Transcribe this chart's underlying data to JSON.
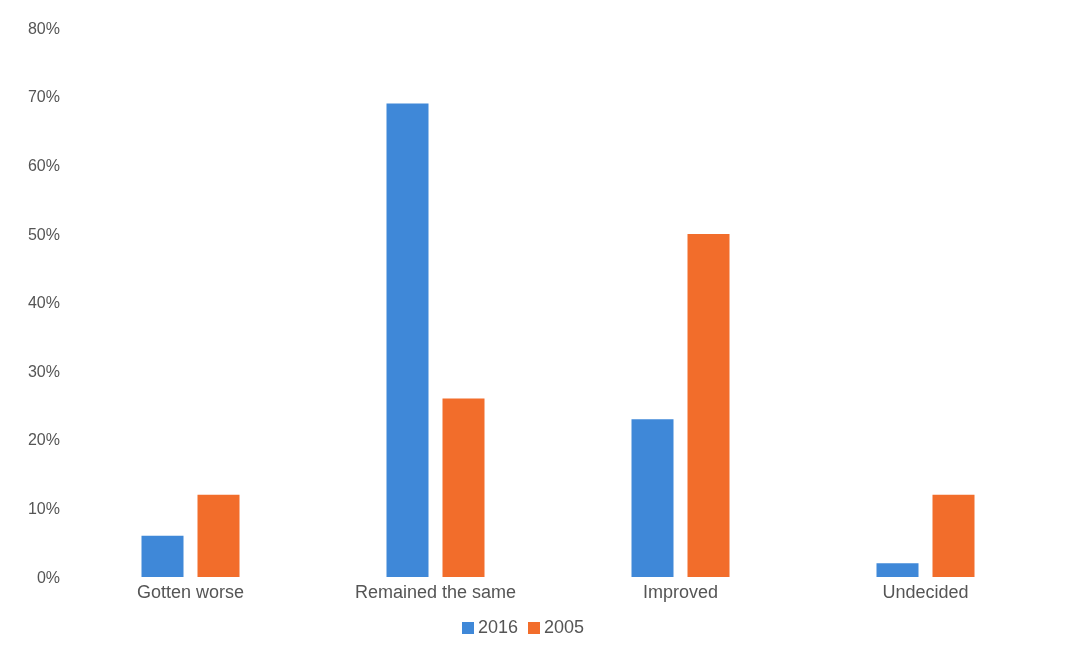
{
  "chart_data": {
    "type": "bar",
    "categories": [
      "Gotten worse",
      "Remained the same",
      "Improved",
      "Undecided"
    ],
    "series": [
      {
        "name": "2016",
        "color": "#3f88d8",
        "values": [
          6,
          69,
          23,
          2
        ]
      },
      {
        "name": "2005",
        "color": "#f26d2b",
        "values": [
          12,
          26,
          50,
          12
        ]
      }
    ],
    "ylim": [
      0,
      80
    ],
    "yticks": [
      {
        "value": 0,
        "label": "0%"
      },
      {
        "value": 10,
        "label": "10%"
      },
      {
        "value": 20,
        "label": "20%"
      },
      {
        "value": 30,
        "label": "30%"
      },
      {
        "value": 40,
        "label": "40%"
      },
      {
        "value": 50,
        "label": "50%"
      },
      {
        "value": 60,
        "label": "60%"
      },
      {
        "value": 70,
        "label": "70%"
      },
      {
        "value": 80,
        "label": "80%"
      }
    ],
    "grid": false,
    "legend": "bottom"
  }
}
